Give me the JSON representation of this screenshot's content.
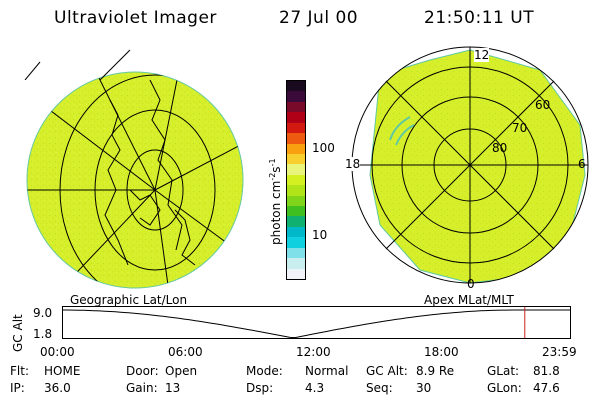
{
  "header": {
    "instrument": "Ultraviolet Imager",
    "date": "27 Jul 00",
    "time": "21:50:11 UT"
  },
  "colorbar": {
    "label": "photon cm",
    "label_sup1": "-2",
    "label_mid": "s",
    "label_sup2": "-1",
    "ticks": [
      "100",
      "10"
    ],
    "colors": [
      "#1a0a20",
      "#3a0a3a",
      "#7a0a2a",
      "#b00018",
      "#d41a10",
      "#ee5a10",
      "#f9a010",
      "#f7d030",
      "#e9f57a",
      "#d4f020",
      "#b0e418",
      "#80d41a",
      "#40c020",
      "#10b070",
      "#00b8c8",
      "#10d0e0",
      "#80e0ea",
      "#c8eef0",
      "#f0f4f8"
    ]
  },
  "panels": {
    "left_title": "Geographic Lat/Lon",
    "right_title": "Apex MLat/MLT",
    "mlt_labels": [
      "12",
      "18",
      "6",
      "0"
    ],
    "mlat_labels": [
      "60",
      "70",
      "80"
    ]
  },
  "timeline": {
    "ylabel": "GC Alt",
    "y_ticks": [
      "9.0",
      "1.8"
    ],
    "x_ticks": [
      "00:00",
      "06:00",
      "12:00",
      "18:00",
      "23:59"
    ],
    "marker_hour": 21.84,
    "marker_color": "#cc2222",
    "line_color": "#000000"
  },
  "info": {
    "rows": [
      [
        {
          "label": "Flt:",
          "value": "HOME"
        },
        {
          "label": "Door:",
          "value": "Open"
        },
        {
          "label": "Mode:",
          "value": "Normal"
        },
        {
          "label": "GC Alt:",
          "value": "8.9 Re"
        },
        {
          "label": "GLat:",
          "value": "81.8"
        }
      ],
      [
        {
          "label": "IP:",
          "value": "36.0"
        },
        {
          "label": "Gain:",
          "value": "13"
        },
        {
          "label": "Dsp:",
          "value": "4.3"
        },
        {
          "label": "Seq:",
          "value": "30"
        },
        {
          "label": "GLon:",
          "value": "47.6"
        }
      ]
    ]
  }
}
